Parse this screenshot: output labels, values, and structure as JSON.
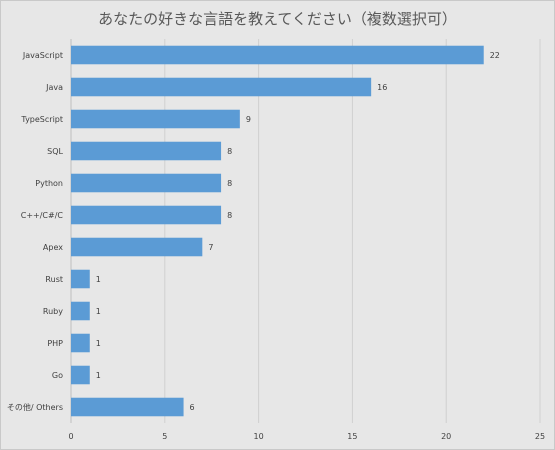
{
  "chart_data": {
    "type": "bar",
    "orientation": "horizontal",
    "title": "あなたの好きな言語を教えてください（複数選択可）",
    "categories": [
      "JavaScript",
      "Java",
      "TypeScript",
      "SQL",
      "Python",
      "C++/C#/C",
      "Apex",
      "Rust",
      "Ruby",
      "PHP",
      "Go",
      "その他/ Others"
    ],
    "values": [
      22,
      16,
      9,
      8,
      8,
      8,
      7,
      1,
      1,
      1,
      1,
      6
    ],
    "xlim": [
      0,
      25
    ],
    "xticks": [
      0,
      5,
      10,
      15,
      20,
      25
    ],
    "grid": true,
    "legend": "none",
    "data_labels": true,
    "colors": {
      "bar": "#5b9bd5",
      "background": "#e7e7e7",
      "gridline": "#d0d0d0",
      "text": "#404040",
      "title": "#595959"
    }
  }
}
